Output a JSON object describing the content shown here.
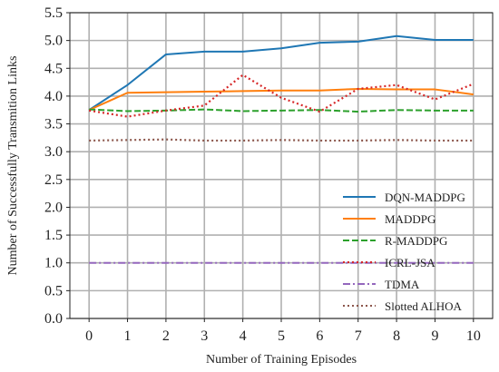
{
  "chart_data": {
    "type": "line",
    "title": "",
    "xlabel": "Number of Training Episodes",
    "ylabel": "Number of Successfully Transmition Links",
    "x": [
      0,
      1,
      2,
      3,
      4,
      5,
      6,
      7,
      8,
      9,
      10
    ],
    "xlim": [
      -0.5,
      10.5
    ],
    "ylim": [
      0.0,
      5.5
    ],
    "xticks": [
      "0",
      "1",
      "2",
      "3",
      "4",
      "5",
      "6",
      "7",
      "8",
      "9",
      "10"
    ],
    "yticks": [
      "0.0",
      "0.5",
      "1.0",
      "1.5",
      "2.0",
      "2.5",
      "3.0",
      "3.5",
      "4.0",
      "4.5",
      "5.0",
      "5.5"
    ],
    "grid": true,
    "legend_position": "bottom-right",
    "series": [
      {
        "name": "DQN-MADDPG",
        "color": "#1f77b4",
        "style": "solid",
        "values": [
          3.75,
          4.2,
          4.75,
          4.8,
          4.8,
          4.86,
          4.96,
          4.98,
          5.08,
          5.01,
          5.01
        ]
      },
      {
        "name": "MADDPG",
        "color": "#ff7f0e",
        "style": "solid",
        "values": [
          3.75,
          4.06,
          4.07,
          4.08,
          4.09,
          4.1,
          4.1,
          4.13,
          4.12,
          4.12,
          4.03
        ]
      },
      {
        "name": "R-MADDPG",
        "color": "#2ca02c",
        "style": "dashed",
        "values": [
          3.76,
          3.73,
          3.74,
          3.76,
          3.73,
          3.74,
          3.75,
          3.72,
          3.75,
          3.74,
          3.74
        ]
      },
      {
        "name": "ICRL-JSA",
        "color": "#d62728",
        "style": "dotted",
        "values": [
          3.74,
          3.63,
          3.74,
          3.83,
          4.38,
          3.97,
          3.72,
          4.13,
          4.2,
          3.94,
          4.22
        ]
      },
      {
        "name": "TDMA",
        "color": "#9467bd",
        "style": "dashdot",
        "values": [
          1.0,
          1.0,
          1.0,
          1.0,
          1.0,
          1.0,
          1.0,
          1.0,
          1.0,
          1.0,
          1.0
        ]
      },
      {
        "name": "Slotted ALHOA",
        "color": "#8c564b",
        "style": "dotted",
        "values": [
          3.2,
          3.21,
          3.22,
          3.2,
          3.2,
          3.21,
          3.2,
          3.2,
          3.21,
          3.2,
          3.2
        ]
      }
    ]
  }
}
